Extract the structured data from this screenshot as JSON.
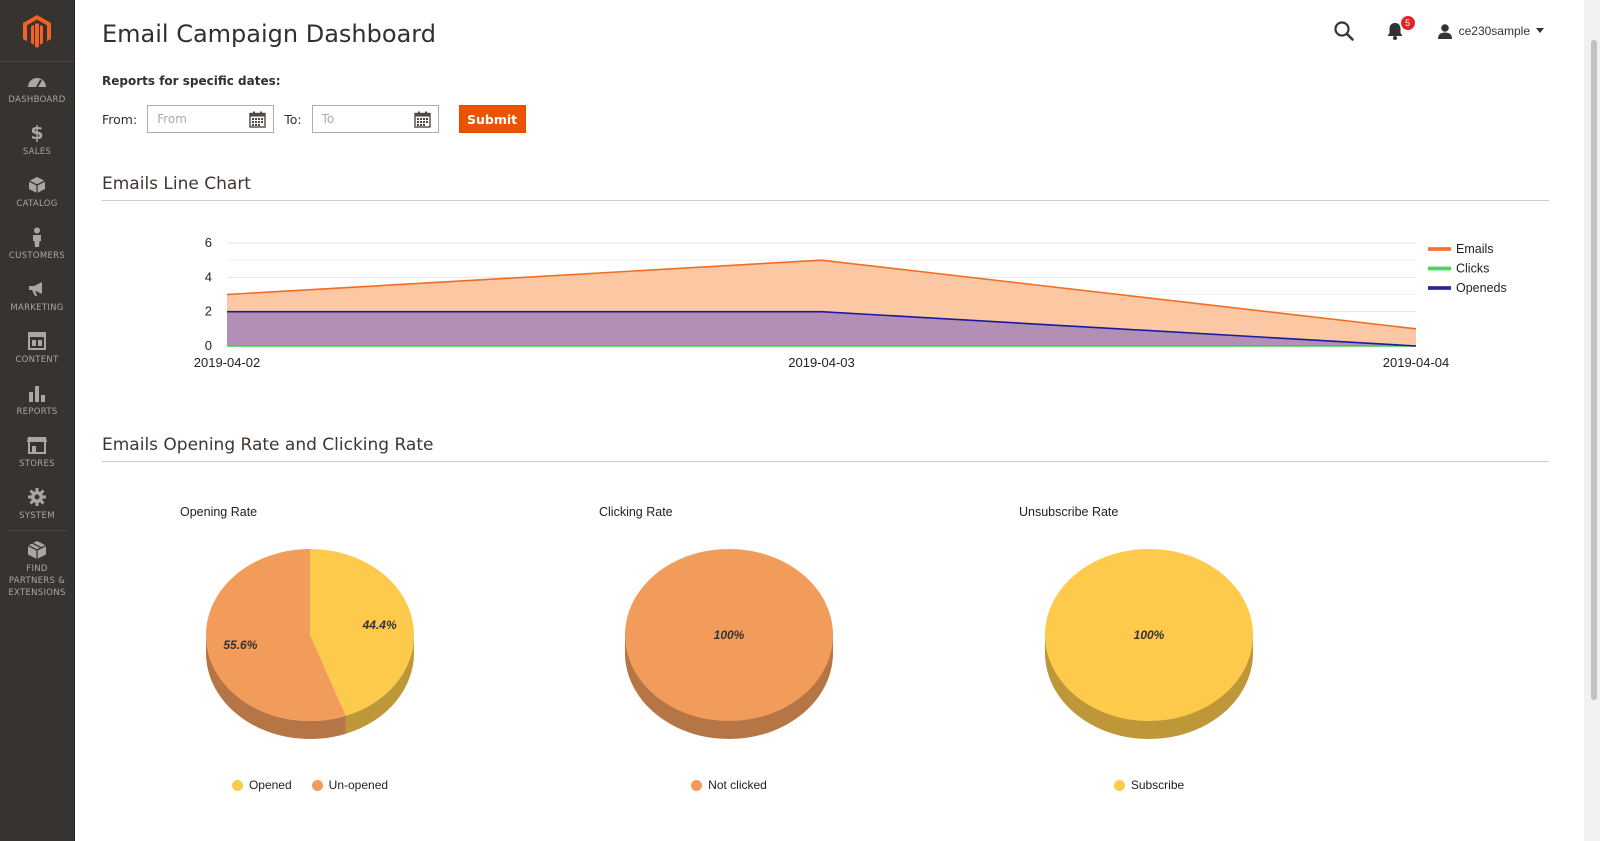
{
  "sidebar": {
    "items": [
      {
        "label": "DASHBOARD",
        "icon": "dashboard-icon"
      },
      {
        "label": "SALES",
        "icon": "dollar-icon"
      },
      {
        "label": "CATALOG",
        "icon": "box-icon"
      },
      {
        "label": "CUSTOMERS",
        "icon": "person-icon"
      },
      {
        "label": "MARKETING",
        "icon": "megaphone-icon"
      },
      {
        "label": "CONTENT",
        "icon": "layout-icon"
      },
      {
        "label": "REPORTS",
        "icon": "bar-chart-icon"
      },
      {
        "label": "STORES",
        "icon": "storefront-icon"
      },
      {
        "label": "SYSTEM",
        "icon": "gear-icon"
      },
      {
        "label": "FIND PARTNERS & EXTENSIONS",
        "icon": "cube-icon"
      }
    ]
  },
  "header": {
    "title": "Email Campaign Dashboard",
    "notification_count": "5",
    "username": "ce230sample"
  },
  "filters": {
    "section_label": "Reports for specific dates:",
    "from_label": "From:",
    "from_placeholder": "From",
    "to_label": "To:",
    "to_placeholder": "To",
    "submit_label": "Submit"
  },
  "sections": {
    "line_chart_title": "Emails Line Chart",
    "rates_title": "Emails Opening Rate and Clicking Rate"
  },
  "colors": {
    "accent": "#eb5202",
    "sidebar_bg": "#373330",
    "emails": "#f26d21",
    "clicks": "#3ccf4e",
    "openeds": "#1a1aa0",
    "pie_orange": "#f29c5c",
    "pie_yellow": "#fdca4b"
  },
  "chart_data": [
    {
      "type": "area",
      "x": [
        "2019-04-02",
        "2019-04-03",
        "2019-04-04"
      ],
      "ylim": [
        0,
        6
      ],
      "yticks": [
        0,
        2,
        4,
        6
      ],
      "legend_position": "right",
      "series": [
        {
          "name": "Emails",
          "values": [
            3,
            5,
            1
          ]
        },
        {
          "name": "Clicks",
          "values": [
            0,
            0,
            0
          ]
        },
        {
          "name": "Openeds",
          "values": [
            2,
            2,
            0
          ]
        }
      ]
    },
    {
      "type": "pie",
      "title": "Opening Rate",
      "slices": [
        {
          "label": "Opened",
          "value": 44.4,
          "display": "44.4%",
          "color": "#fdca4b"
        },
        {
          "label": "Un-opened",
          "value": 55.6,
          "display": "55.6%",
          "color": "#f29c5c"
        }
      ]
    },
    {
      "type": "pie",
      "title": "Clicking Rate",
      "slices": [
        {
          "label": "Not clicked",
          "value": 100,
          "display": "100%",
          "color": "#f29c5c"
        }
      ]
    },
    {
      "type": "pie",
      "title": "Unsubscribe Rate",
      "slices": [
        {
          "label": "Subscribe",
          "value": 100,
          "display": "100%",
          "color": "#fdca4b"
        }
      ]
    }
  ]
}
